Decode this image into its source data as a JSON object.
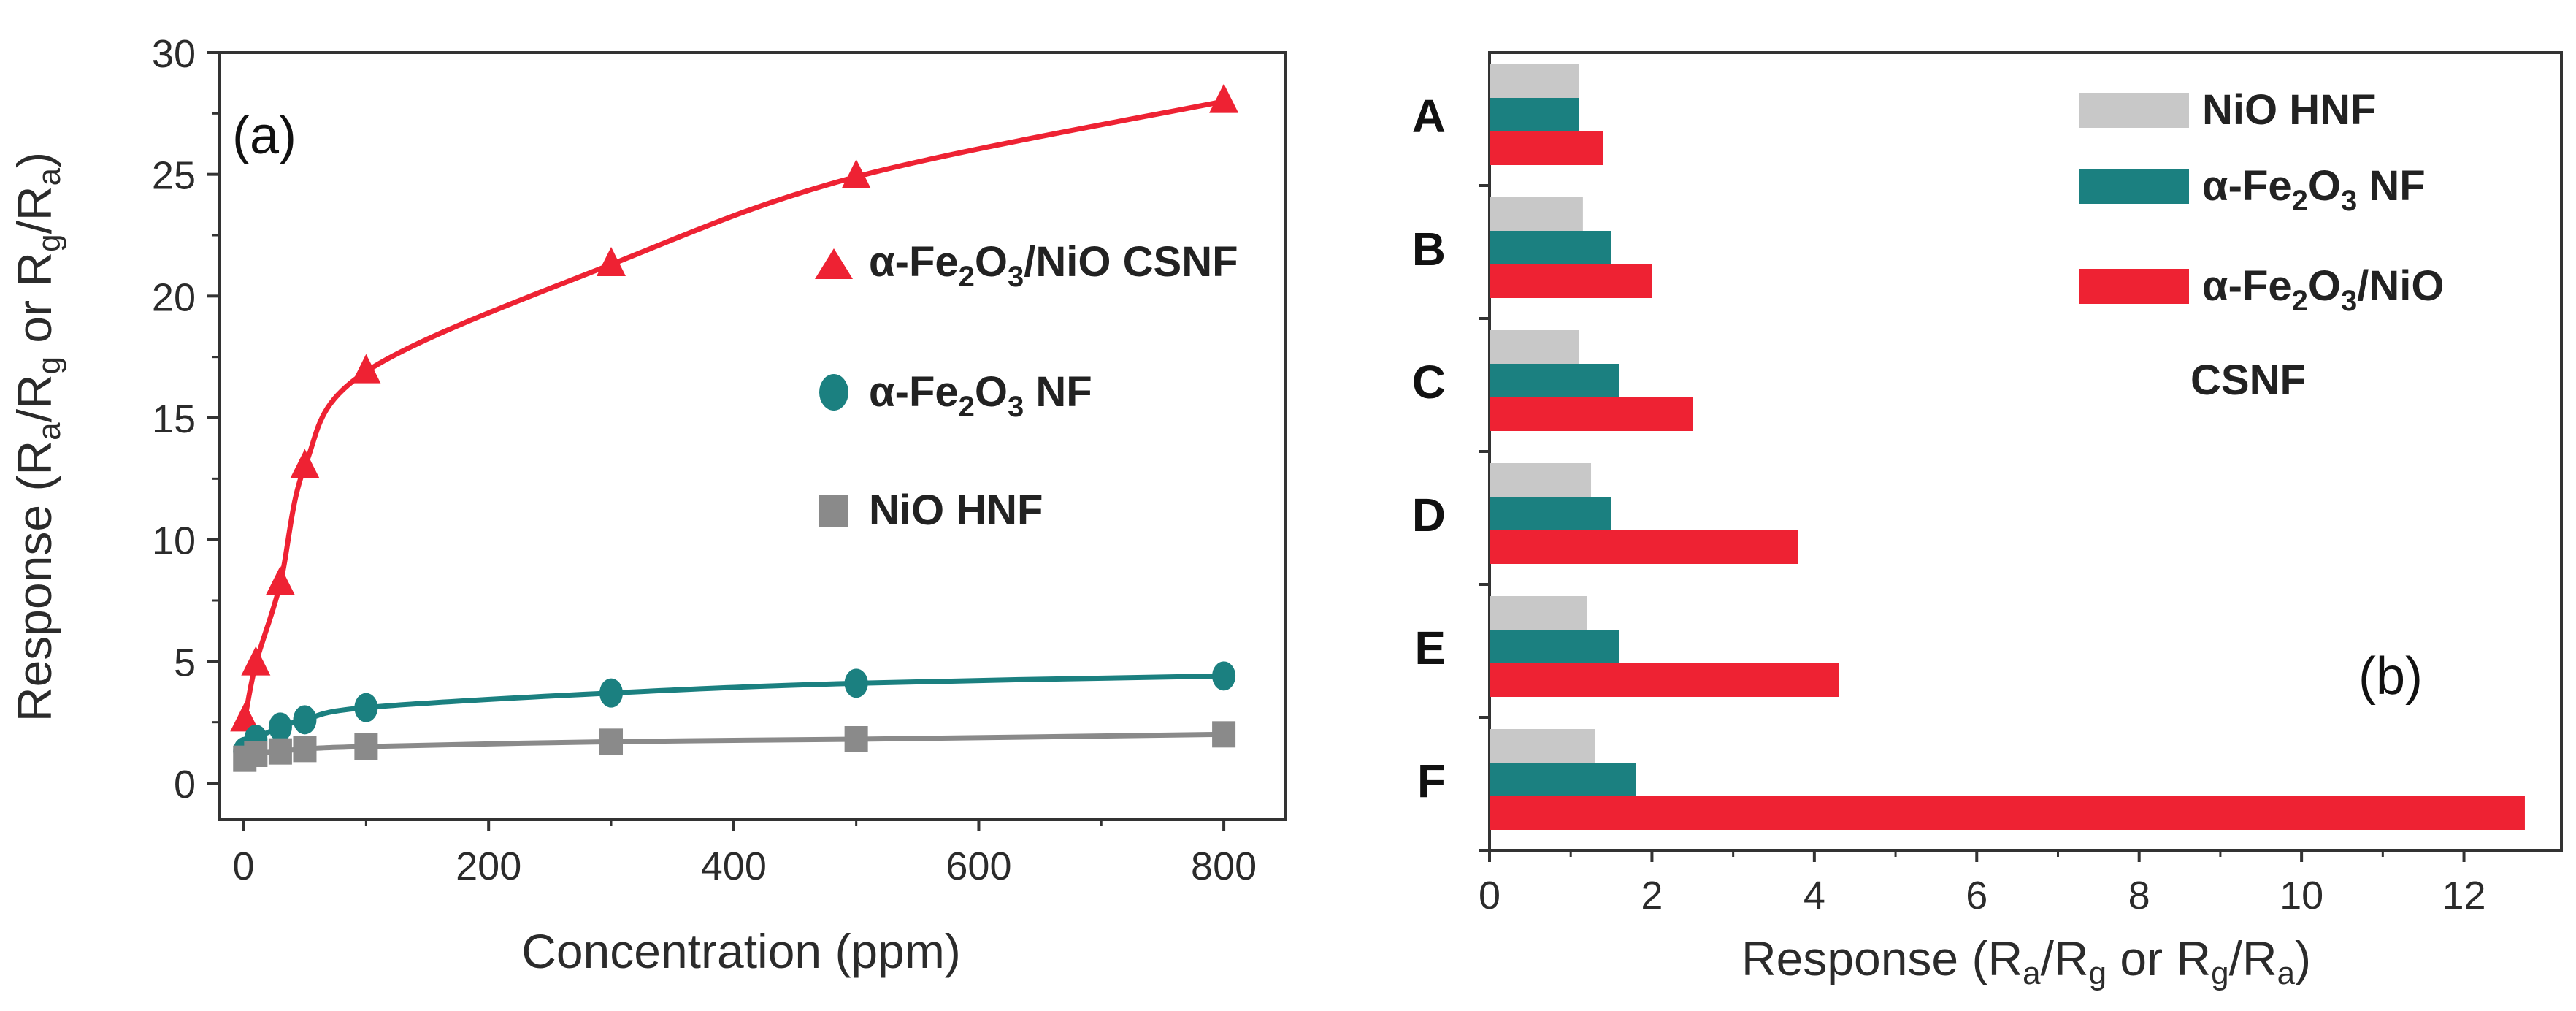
{
  "colors": {
    "red": "#ee2233",
    "teal": "#1b8080",
    "gray": "#8a8a8a",
    "light_gray": "#c8c8c8",
    "axis": "#333333"
  },
  "chart_data": [
    {
      "type": "line",
      "panel_label": "(a)",
      "xlabel": "Concentration (ppm)",
      "ylabel": "Response (Ra/Rg or Rg/Ra)",
      "ylabel_parts": {
        "pre": "Response (R",
        "s1": "a",
        "m1": "/R",
        "s2": "g",
        "m2": " or R",
        "s3": "g",
        "m3": "/R",
        "s4": "a",
        "post": ")"
      },
      "xlim": [
        -20,
        850
      ],
      "ylim": [
        -1.5,
        30
      ],
      "xticks": [
        0,
        200,
        400,
        600,
        800
      ],
      "yticks": [
        0,
        5,
        10,
        15,
        20,
        25,
        30
      ],
      "x": [
        1,
        10,
        30,
        50,
        100,
        300,
        500,
        800
      ],
      "series": [
        {
          "name": "α-Fe2O3/NiO CSNF",
          "legend_parts": {
            "pre": "α-Fe",
            "s1": "2",
            "mid": "O",
            "s2": "3",
            "post": "/NiO CSNF"
          },
          "marker": "triangle",
          "color_key": "red",
          "values": [
            2.6,
            4.9,
            8.2,
            13.0,
            16.9,
            21.3,
            24.9,
            28.0
          ]
        },
        {
          "name": "α-Fe2O3 NF",
          "legend_parts": {
            "pre": "α-Fe",
            "s1": "2",
            "mid": "O",
            "s2": "3",
            "post": " NF"
          },
          "marker": "circle",
          "color_key": "teal",
          "values": [
            1.3,
            1.8,
            2.3,
            2.6,
            3.1,
            3.7,
            4.1,
            4.4
          ]
        },
        {
          "name": "NiO HNF",
          "legend_parts": {
            "pre": "NiO HNF",
            "s1": "",
            "mid": "",
            "s2": "",
            "post": ""
          },
          "marker": "square",
          "color_key": "gray",
          "values": [
            1.0,
            1.2,
            1.3,
            1.4,
            1.5,
            1.7,
            1.8,
            2.0
          ]
        }
      ]
    },
    {
      "type": "bar",
      "orientation": "horizontal",
      "panel_label": "(b)",
      "xlabel": "Response (Ra/Rg or Rg/Ra)",
      "xlabel_parts": {
        "pre": "Response (R",
        "s1": "a",
        "m1": "/R",
        "s2": "g",
        "m2": " or R",
        "s3": "g",
        "m3": "/R",
        "s4": "a",
        "post": ")"
      },
      "xlim": [
        0,
        13.2
      ],
      "xticks": [
        0,
        2,
        4,
        6,
        8,
        10,
        12
      ],
      "categories": [
        "A",
        "B",
        "C",
        "D",
        "E",
        "F"
      ],
      "series": [
        {
          "name": "NiO HNF",
          "legend_parts": {
            "pre": "NiO HNF",
            "s1": "",
            "mid": "",
            "s2": "",
            "post": ""
          },
          "color_key": "light_gray",
          "values": [
            1.1,
            1.15,
            1.1,
            1.25,
            1.2,
            1.3
          ]
        },
        {
          "name": "α-Fe2O3 NF",
          "legend_parts": {
            "pre": "α-Fe",
            "s1": "2",
            "mid": "O",
            "s2": "3",
            "post": " NF"
          },
          "color_key": "teal",
          "values": [
            1.1,
            1.5,
            1.6,
            1.5,
            1.6,
            1.8
          ]
        },
        {
          "name": "α-Fe2O3/NiO CSNF",
          "legend_parts": {
            "pre": "α-Fe",
            "s1": "2",
            "mid": "O",
            "s2": "3",
            "post": "/NiO"
          },
          "legend_line2": "CSNF",
          "color_key": "red",
          "values": [
            1.4,
            2.0,
            2.5,
            3.8,
            4.3,
            12.75
          ]
        }
      ]
    }
  ]
}
